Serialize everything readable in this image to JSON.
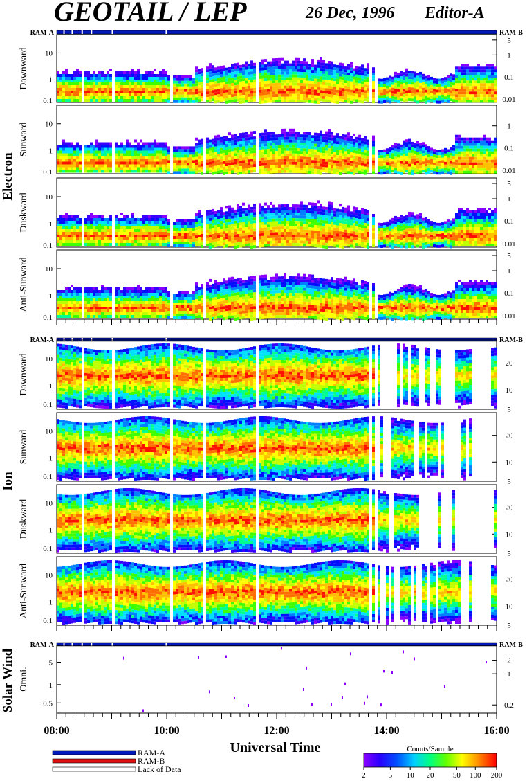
{
  "header": {
    "title": "GEOTAIL / LEP",
    "date": "26 Dec, 1996",
    "editor": "Editor-A"
  },
  "mode_bar": {
    "left_label": "RAM-A",
    "right_label": "RAM-B"
  },
  "colors": {
    "ram_a": "#0018b8",
    "ram_b": "#e01010",
    "lack_of_data": "#ffffff",
    "colorscale": [
      "#8a00ff",
      "#3a00ff",
      "#0010ff",
      "#0080ff",
      "#00e0ff",
      "#00ff90",
      "#40ff00",
      "#c0ff00",
      "#ffff00",
      "#ffc000",
      "#ff7000",
      "#ff1000"
    ]
  },
  "chart_data": {
    "type": "heatmap",
    "xlabel": "Universal Time",
    "x_ticks": [
      "08:00",
      "10:00",
      "12:00",
      "14:00",
      "16:00"
    ],
    "x_range_hours": [
      8,
      16
    ],
    "groups": [
      {
        "name": "Electron",
        "panels": [
          {
            "name": "Dawnward",
            "y_ticks": [
              "10",
              "1",
              "0.1"
            ],
            "right_ticks": [
              "5",
              "1",
              "0.1",
              "0.01"
            ]
          },
          {
            "name": "Sunward",
            "y_ticks": [
              "10",
              "1",
              "0.1"
            ],
            "right_ticks": [
              "1",
              "0.1",
              "0.01"
            ]
          },
          {
            "name": "Duskward",
            "y_ticks": [
              "10",
              "1",
              "0.1"
            ],
            "right_ticks": [
              "5",
              "1",
              "0.1",
              "0.01"
            ]
          },
          {
            "name": "Anti-Sunward",
            "y_ticks": [
              "10",
              "1",
              "0.1"
            ],
            "right_ticks": [
              "5",
              "1",
              "0.1",
              "0.01"
            ]
          }
        ]
      },
      {
        "name": "Ion",
        "panels": [
          {
            "name": "Dawnward",
            "y_ticks": [
              "10",
              "1",
              "0.1"
            ],
            "right_ticks": [
              "20",
              "10",
              "5"
            ]
          },
          {
            "name": "Sunward",
            "y_ticks": [
              "10",
              "1",
              "0.1"
            ],
            "right_ticks": [
              "20",
              "10",
              "5"
            ]
          },
          {
            "name": "Duskward",
            "y_ticks": [
              "10",
              "1",
              "0.1"
            ],
            "right_ticks": [
              "20",
              "10",
              "5"
            ]
          },
          {
            "name": "Anti-Sunward",
            "y_ticks": [
              "10",
              "1",
              "0.1"
            ],
            "right_ticks": [
              "20",
              "10",
              "5"
            ]
          }
        ]
      },
      {
        "name": "Solar Wind",
        "panels": [
          {
            "name": "Omni.",
            "y_ticks": [
              "5",
              "1",
              "0.5"
            ],
            "right_ticks": [
              "2",
              "1",
              "0.2"
            ]
          }
        ]
      }
    ],
    "colorbar": {
      "title": "Counts/Sample",
      "ticks": [
        "2",
        "5",
        "10",
        "20",
        "50",
        "100",
        "200"
      ]
    },
    "legend": [
      {
        "label": "RAM-A",
        "color": "#0018b8"
      },
      {
        "label": "RAM-B",
        "color": "#e01010"
      },
      {
        "label": "Lack of Data",
        "color": "#ffffff"
      }
    ]
  }
}
